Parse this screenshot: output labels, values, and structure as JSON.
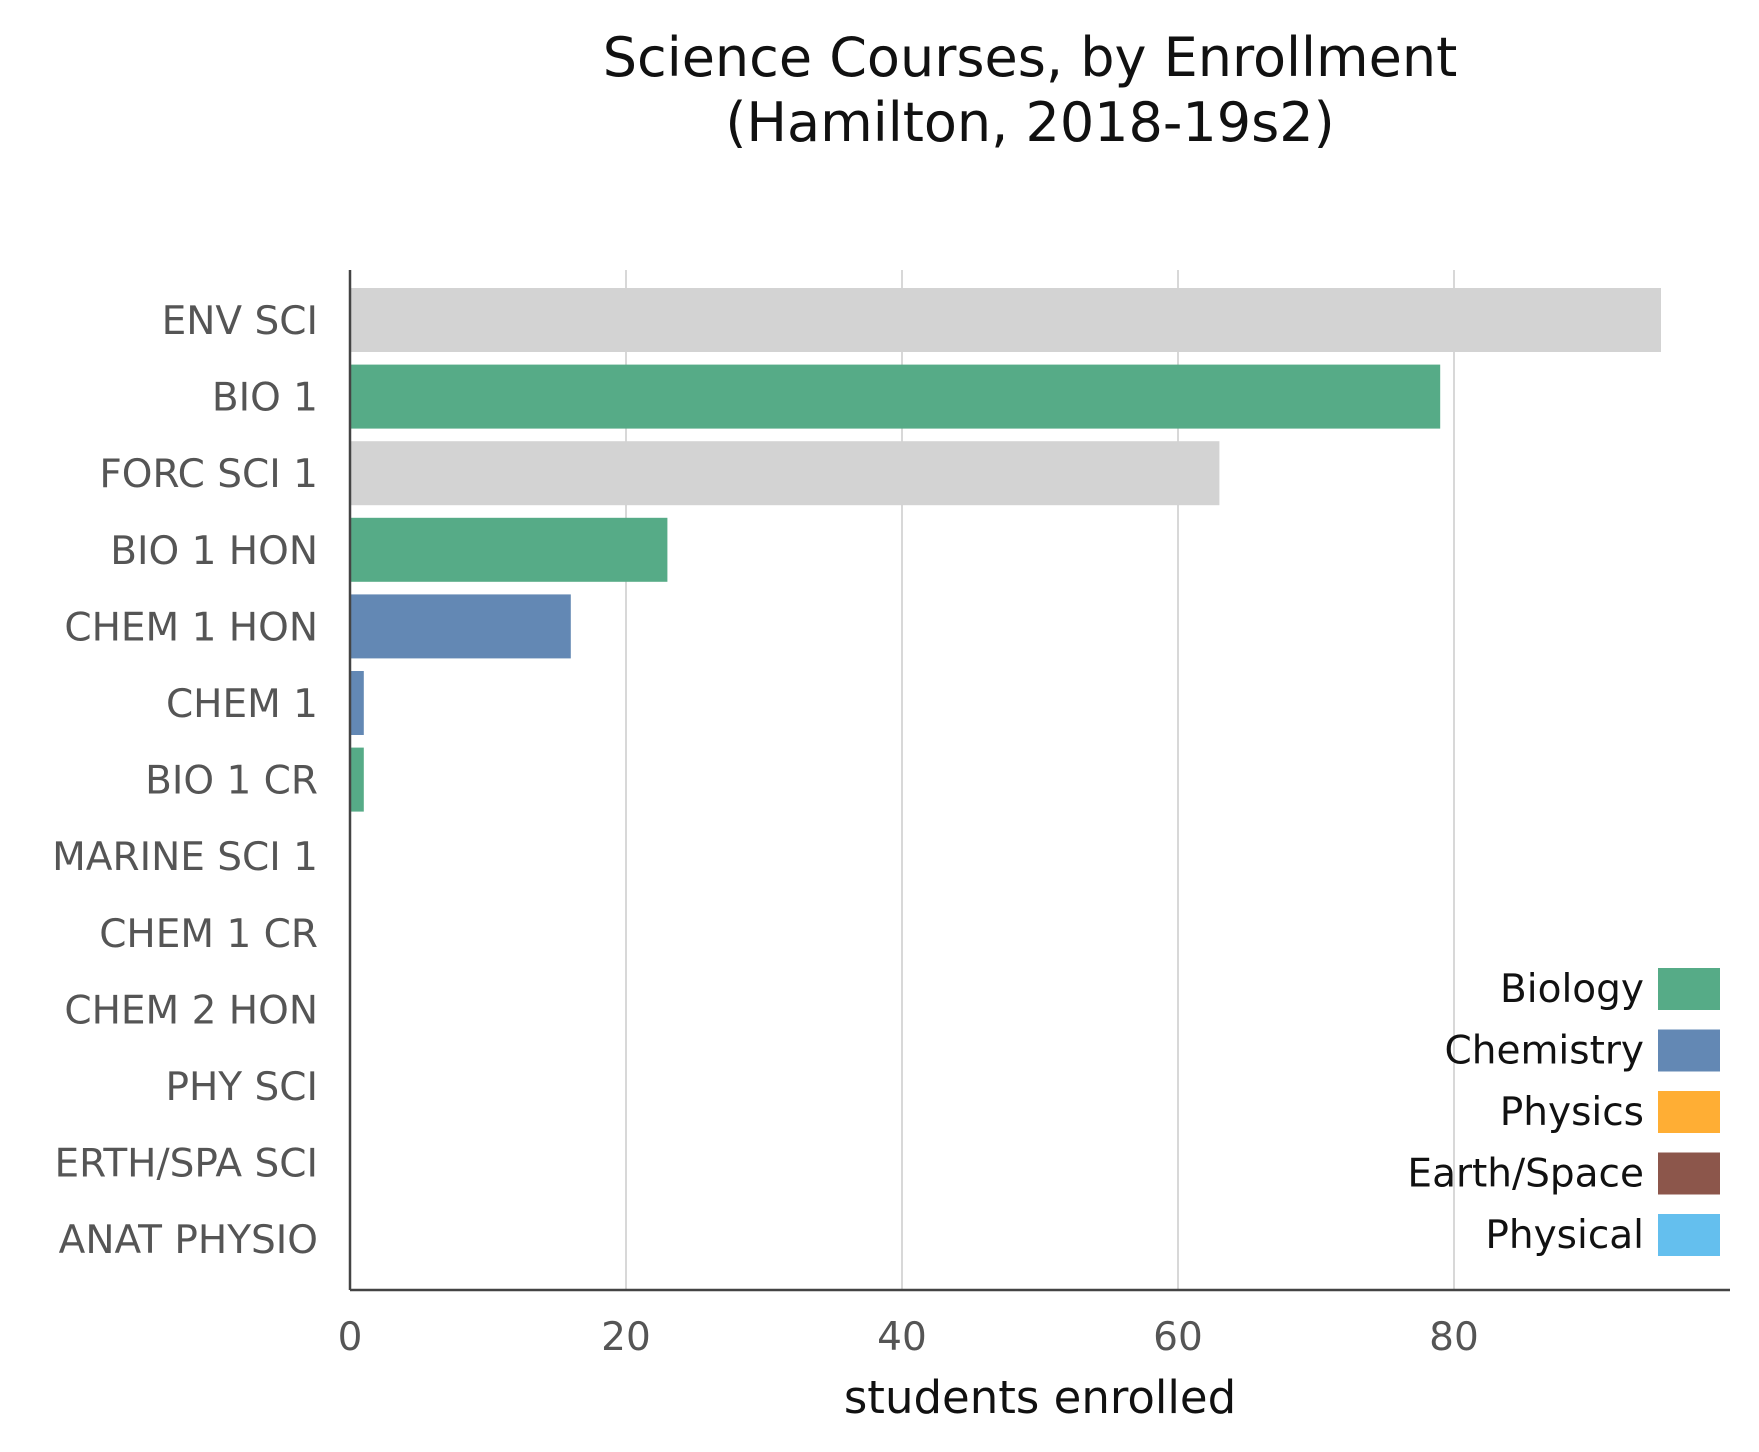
{
  "chart_data": {
    "type": "bar",
    "orientation": "horizontal",
    "title": [
      "Science Courses, by Enrollment",
      "(Hamilton, 2018-19s2)"
    ],
    "xlabel": "students enrolled",
    "ylabel": "",
    "xlim": [
      0,
      100
    ],
    "xticks": [
      "0",
      "20",
      "40",
      "60",
      "80"
    ],
    "xtick_values": [
      0,
      20,
      40,
      60,
      80
    ],
    "grid": "vertical",
    "legend_position": "bottom-right",
    "categories": [
      "ENV SCI",
      "BIO 1",
      "FORC SCI 1",
      "BIO 1 HON",
      "CHEM 1 HON",
      "CHEM 1",
      "BIO 1 CR",
      "MARINE SCI 1",
      "CHEM 1 CR",
      "CHEM 2 HON",
      "PHY SCI",
      "ERTH/SPA SCI",
      "ANAT PHYSIO"
    ],
    "values": [
      95,
      79,
      63,
      23,
      16,
      1,
      1,
      0,
      0,
      0,
      0,
      0,
      0
    ],
    "bar_colors": [
      "#d3d3d3",
      "#56ab87",
      "#d3d3d3",
      "#56ab87",
      "#6388b4",
      "#6388b4",
      "#56ab87",
      "#d3d3d3",
      "#6388b4",
      "#6388b4",
      "#5fbdef",
      "#8c5a4d",
      "#56ab87"
    ],
    "legend": [
      {
        "label": "Biology",
        "color": "#56ab87"
      },
      {
        "label": "Chemistry",
        "color": "#6388b4"
      },
      {
        "label": "Physics",
        "color": "#ffae34"
      },
      {
        "label": "Earth/Space",
        "color": "#8c564b"
      },
      {
        "label": "Physical",
        "color": "#64bfee"
      }
    ]
  }
}
